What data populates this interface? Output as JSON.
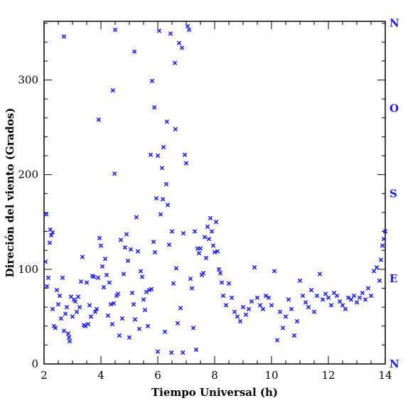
{
  "chart_data": {
    "type": "scatter",
    "xlabel": "Tiempo Universal (h)",
    "ylabel": "Direción del viento (Grados)",
    "xlim": [
      2,
      14
    ],
    "ylim": [
      0,
      362
    ],
    "x_ticks": [
      "2",
      "4",
      "6",
      "8",
      "10",
      "12",
      "14"
    ],
    "y_ticks": [
      "0",
      "100",
      "200",
      "300"
    ],
    "compass_labels": [
      {
        "label": "N",
        "value": 360
      },
      {
        "label": "O",
        "value": 270
      },
      {
        "label": "S",
        "value": 180
      },
      {
        "label": "E",
        "value": 90
      },
      {
        "label": "N",
        "value": 0
      }
    ],
    "marker": "x",
    "color": "#1a1aff",
    "grid": false,
    "series": [
      {
        "points": [
          [
            2.05,
            108
          ],
          [
            2.08,
            158
          ],
          [
            2.1,
            82
          ],
          [
            2.15,
            91
          ],
          [
            2.2,
            128
          ],
          [
            2.22,
            142
          ],
          [
            2.25,
            136
          ],
          [
            2.3,
            139
          ],
          [
            2.3,
            58
          ],
          [
            2.35,
            40
          ],
          [
            2.4,
            38
          ],
          [
            2.45,
            78
          ],
          [
            2.5,
            63
          ],
          [
            2.55,
            72
          ],
          [
            2.6,
            48
          ],
          [
            2.65,
            91
          ],
          [
            2.7,
            346
          ],
          [
            2.7,
            35
          ],
          [
            2.75,
            53
          ],
          [
            2.8,
            60
          ],
          [
            2.85,
            32
          ],
          [
            2.88,
            28
          ],
          [
            2.9,
            24
          ],
          [
            2.95,
            71
          ],
          [
            3.0,
            50
          ],
          [
            3.05,
            68
          ],
          [
            3.1,
            66
          ],
          [
            3.15,
            55
          ],
          [
            3.2,
            71
          ],
          [
            3.25,
            60
          ],
          [
            3.3,
            87
          ],
          [
            3.35,
            113
          ],
          [
            3.4,
            41
          ],
          [
            3.45,
            40
          ],
          [
            3.5,
            86
          ],
          [
            3.55,
            42
          ],
          [
            3.6,
            62
          ],
          [
            3.65,
            50
          ],
          [
            3.7,
            93
          ],
          [
            3.75,
            92
          ],
          [
            3.8,
            55
          ],
          [
            3.85,
            58
          ],
          [
            3.9,
            91
          ],
          [
            3.92,
            258
          ],
          [
            3.95,
            133
          ],
          [
            4.0,
            125
          ],
          [
            4.05,
            103
          ],
          [
            4.1,
            81
          ],
          [
            4.15,
            111
          ],
          [
            4.2,
            94
          ],
          [
            4.25,
            51
          ],
          [
            4.3,
            86
          ],
          [
            4.35,
            63
          ],
          [
            4.4,
            42
          ],
          [
            4.42,
            289
          ],
          [
            4.45,
            64
          ],
          [
            4.48,
            201
          ],
          [
            4.5,
            353
          ],
          [
            4.55,
            72
          ],
          [
            4.6,
            74
          ],
          [
            4.65,
            30
          ],
          [
            4.7,
            131
          ],
          [
            4.75,
            48
          ],
          [
            4.8,
            95
          ],
          [
            4.85,
            123
          ],
          [
            4.9,
            137
          ],
          [
            4.95,
            109
          ],
          [
            5.0,
            28
          ],
          [
            5.05,
            121
          ],
          [
            5.1,
            75
          ],
          [
            5.15,
            63
          ],
          [
            5.18,
            330
          ],
          [
            5.2,
            47
          ],
          [
            5.25,
            155
          ],
          [
            5.3,
            119
          ],
          [
            5.35,
            37
          ],
          [
            5.4,
            98
          ],
          [
            5.45,
            92
          ],
          [
            5.5,
            68
          ],
          [
            5.55,
            57
          ],
          [
            5.6,
            76
          ],
          [
            5.65,
            40
          ],
          [
            5.7,
            78
          ],
          [
            5.75,
            221
          ],
          [
            5.78,
            79
          ],
          [
            5.8,
            299
          ],
          [
            5.85,
            129
          ],
          [
            5.88,
            271
          ],
          [
            5.9,
            118
          ],
          [
            5.95,
            175
          ],
          [
            6.0,
            13
          ],
          [
            6.0,
            220
          ],
          [
            6.05,
            352
          ],
          [
            6.1,
            158
          ],
          [
            6.15,
            207
          ],
          [
            6.18,
            174
          ],
          [
            6.2,
            229
          ],
          [
            6.25,
            34
          ],
          [
            6.3,
            190
          ],
          [
            6.32,
            256
          ],
          [
            6.35,
            168
          ],
          [
            6.4,
            126
          ],
          [
            6.45,
            349
          ],
          [
            6.48,
            12
          ],
          [
            6.5,
            140
          ],
          [
            6.55,
            85
          ],
          [
            6.6,
            318
          ],
          [
            6.62,
            248
          ],
          [
            6.65,
            101
          ],
          [
            6.7,
            43
          ],
          [
            6.75,
            339
          ],
          [
            6.8,
            59
          ],
          [
            6.85,
            334
          ],
          [
            6.88,
            12
          ],
          [
            6.9,
            138
          ],
          [
            6.95,
            221
          ],
          [
            7.0,
            212
          ],
          [
            7.05,
            357
          ],
          [
            7.1,
            353
          ],
          [
            7.15,
            90
          ],
          [
            7.2,
            80
          ],
          [
            7.25,
            38
          ],
          [
            7.3,
            140
          ],
          [
            7.35,
            15
          ],
          [
            7.4,
            122
          ],
          [
            7.45,
            117
          ],
          [
            7.5,
            122
          ],
          [
            7.55,
            94
          ],
          [
            7.6,
            96
          ],
          [
            7.65,
            134
          ],
          [
            7.7,
            112
          ],
          [
            7.75,
            145
          ],
          [
            7.8,
            132
          ],
          [
            7.85,
            154
          ],
          [
            7.9,
            140
          ],
          [
            7.95,
            125
          ],
          [
            8.0,
            118
          ],
          [
            8.05,
            150
          ],
          [
            8.1,
            119
          ],
          [
            8.15,
            100
          ],
          [
            8.2,
            96
          ],
          [
            8.25,
            86
          ],
          [
            8.3,
            72
          ],
          [
            8.4,
            62
          ],
          [
            8.5,
            85
          ],
          [
            8.6,
            70
          ],
          [
            8.7,
            55
          ],
          [
            8.8,
            50
          ],
          [
            8.9,
            45
          ],
          [
            9.0,
            60
          ],
          [
            9.1,
            52
          ],
          [
            9.2,
            58
          ],
          [
            9.3,
            66
          ],
          [
            9.4,
            102
          ],
          [
            9.5,
            70
          ],
          [
            9.6,
            62
          ],
          [
            9.7,
            58
          ],
          [
            9.8,
            72
          ],
          [
            9.9,
            70
          ],
          [
            10.0,
            62
          ],
          [
            10.1,
            98
          ],
          [
            10.2,
            25
          ],
          [
            10.3,
            55
          ],
          [
            10.4,
            38
          ],
          [
            10.5,
            50
          ],
          [
            10.6,
            68
          ],
          [
            10.7,
            58
          ],
          [
            10.8,
            30
          ],
          [
            10.9,
            45
          ],
          [
            11.0,
            88
          ],
          [
            11.1,
            72
          ],
          [
            11.2,
            65
          ],
          [
            11.3,
            60
          ],
          [
            11.4,
            78
          ],
          [
            11.5,
            55
          ],
          [
            11.6,
            72
          ],
          [
            11.7,
            95
          ],
          [
            11.8,
            68
          ],
          [
            11.9,
            74
          ],
          [
            12.0,
            70
          ],
          [
            12.1,
            62
          ],
          [
            12.2,
            75
          ],
          [
            12.3,
            72
          ],
          [
            12.4,
            66
          ],
          [
            12.5,
            62
          ],
          [
            12.6,
            58
          ],
          [
            12.7,
            70
          ],
          [
            12.8,
            68
          ],
          [
            12.9,
            72
          ],
          [
            13.0,
            65
          ],
          [
            13.1,
            70
          ],
          [
            13.2,
            75
          ],
          [
            13.3,
            68
          ],
          [
            13.4,
            80
          ],
          [
            13.5,
            72
          ],
          [
            13.6,
            98
          ],
          [
            13.7,
            102
          ],
          [
            13.8,
            88
          ],
          [
            13.85,
            110
          ],
          [
            13.9,
            125
          ],
          [
            13.95,
            132
          ],
          [
            14.0,
            140
          ]
        ]
      }
    ]
  }
}
